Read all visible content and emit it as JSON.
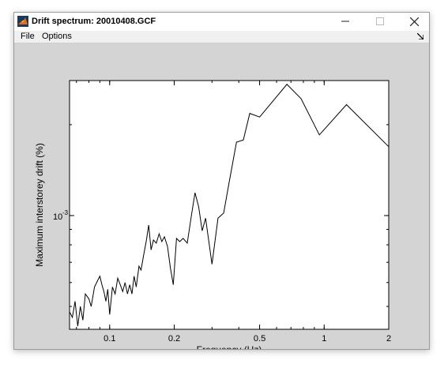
{
  "window": {
    "title": "Drift spectrum: 20010408.GCF",
    "controls": [
      "minimize-icon",
      "maximize-icon",
      "close-icon"
    ]
  },
  "menu": {
    "items": [
      "File",
      "Options"
    ],
    "overflow_icon": "dock-arrow-icon"
  },
  "colors": {
    "figure_bg": "#d4d4d4",
    "axes_bg": "#ffffff",
    "line": "#000000"
  },
  "chart_data": {
    "type": "line",
    "title": "",
    "xlabel": "Frequency (Hz)",
    "ylabel": "Maximum interstorey drift (%)",
    "xscale": "log",
    "yscale": "log",
    "xlim": [
      0.065,
      2.0
    ],
    "ylim": [
      0.00042,
      0.0028
    ],
    "x_ticks": [
      0.1,
      0.2,
      0.5,
      1,
      2
    ],
    "x_tick_labels": [
      "0.1",
      "0.2",
      "0.5",
      "1",
      "2"
    ],
    "y_major_tick": 0.001,
    "y_tick_label_base": "10",
    "y_tick_label_exp": "-3",
    "grid": false,
    "legend": "none",
    "series": [
      {
        "x": [
          0.065,
          0.067,
          0.069,
          0.071,
          0.073,
          0.075,
          0.077,
          0.08,
          0.082,
          0.085,
          0.088,
          0.09,
          0.092,
          0.094,
          0.096,
          0.098,
          0.1,
          0.103,
          0.106,
          0.109,
          0.112,
          0.115,
          0.118,
          0.121,
          0.124,
          0.127,
          0.13,
          0.133,
          0.137,
          0.14,
          0.144,
          0.148,
          0.152,
          0.156,
          0.16,
          0.165,
          0.17,
          0.175,
          0.18,
          0.186,
          0.192,
          0.198,
          0.205,
          0.212,
          0.22,
          0.23,
          0.24,
          0.25,
          0.26,
          0.27,
          0.28,
          0.3,
          0.32,
          0.34,
          0.36,
          0.39,
          0.42,
          0.45,
          0.5,
          0.67,
          0.78,
          0.95,
          1.27,
          2.0
        ],
        "y": [
          0.00048,
          0.00046,
          0.00052,
          0.00043,
          0.0005,
          0.00045,
          0.00055,
          0.00053,
          0.0005,
          0.00058,
          0.00061,
          0.00063,
          0.00059,
          0.00056,
          0.00052,
          0.00057,
          0.00047,
          0.00058,
          0.00055,
          0.00062,
          0.00059,
          0.00056,
          0.0006,
          0.00055,
          0.00059,
          0.00055,
          0.00063,
          0.00058,
          0.00068,
          0.00066,
          0.00074,
          0.00082,
          0.00093,
          0.00077,
          0.00083,
          0.00081,
          0.00087,
          0.00082,
          0.00085,
          0.00079,
          0.00067,
          0.00059,
          0.00084,
          0.00082,
          0.00084,
          0.00081,
          0.00099,
          0.00119,
          0.00107,
          0.00089,
          0.00098,
          0.00069,
          0.00098,
          0.00102,
          0.00128,
          0.00175,
          0.00178,
          0.00218,
          0.00212,
          0.00272,
          0.00244,
          0.00185,
          0.00233,
          0.00169
        ]
      }
    ]
  }
}
